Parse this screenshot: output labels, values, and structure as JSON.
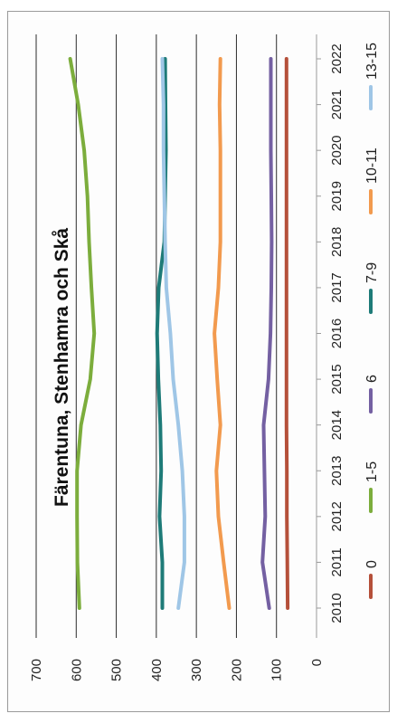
{
  "chart_data": {
    "type": "line",
    "title": "Färentuna, Stenhamra och Skå",
    "xlabel": "",
    "ylabel": "",
    "categories": [
      "2010",
      "2011",
      "2012",
      "2013",
      "2014",
      "2015",
      "2016",
      "2017",
      "2018",
      "2019",
      "2020",
      "2021",
      "2022"
    ],
    "ylim": [
      0,
      700
    ],
    "yticks": [
      0,
      100,
      200,
      300,
      400,
      500,
      600,
      700
    ],
    "grid": "horizontal",
    "legend_position": "bottom",
    "series": [
      {
        "name": "0",
        "color": "#b5503a",
        "values": [
          72,
          73,
          74,
          74,
          75,
          75,
          75,
          75,
          75,
          75,
          75,
          75,
          75
        ]
      },
      {
        "name": "1-5",
        "color": "#7cad3c",
        "values": [
          592,
          597,
          598,
          598,
          588,
          565,
          555,
          562,
          568,
          572,
          580,
          595,
          615
        ]
      },
      {
        "name": "6",
        "color": "#7460a2",
        "values": [
          118,
          135,
          128,
          130,
          132,
          120,
          115,
          113,
          112,
          113,
          114,
          114,
          114
        ]
      },
      {
        "name": "7-9",
        "color": "#1e7b78",
        "values": [
          385,
          385,
          392,
          388,
          390,
          395,
          398,
          394,
          380,
          378,
          376,
          377,
          378
        ]
      },
      {
        "name": "10-11",
        "color": "#f29a4e",
        "values": [
          218,
          232,
          245,
          250,
          240,
          248,
          255,
          245,
          240,
          240,
          240,
          242,
          240
        ]
      },
      {
        "name": "13-15",
        "color": "#9fc6e6",
        "values": [
          345,
          330,
          330,
          335,
          345,
          358,
          365,
          375,
          378,
          380,
          382,
          382,
          385
        ]
      }
    ]
  }
}
